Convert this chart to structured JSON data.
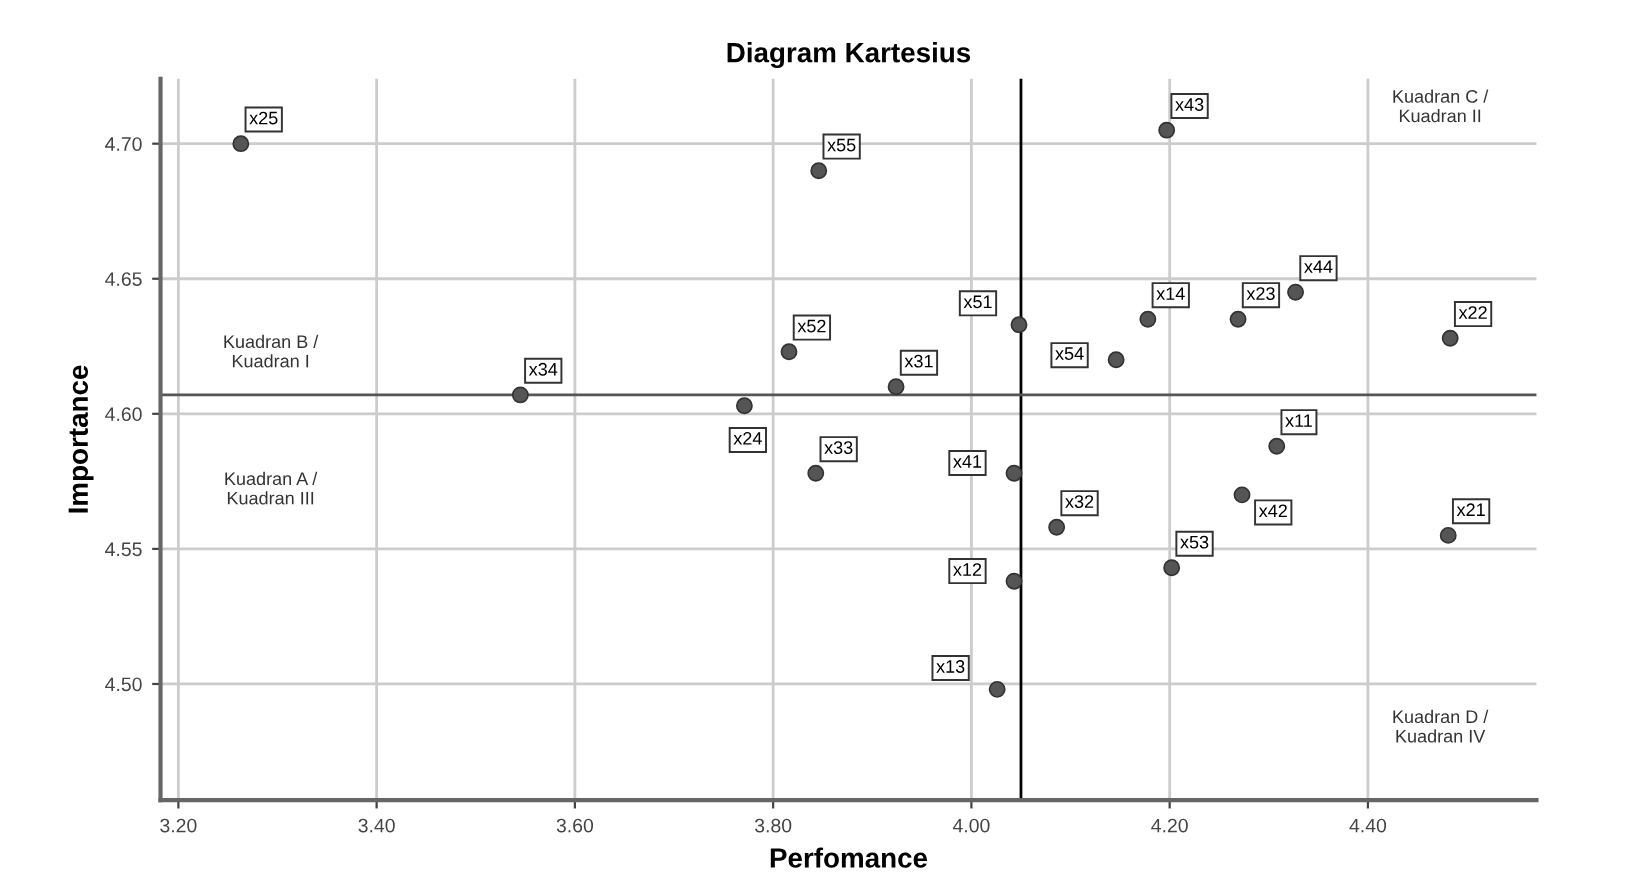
{
  "chart_data": {
    "type": "scatter",
    "title": "Diagram Kartesius",
    "xlabel": "Perfomance",
    "ylabel": "Importance",
    "x": [
      3.263,
      3.846,
      3.816,
      3.545,
      3.771,
      4.197,
      4.048,
      3.924,
      4.146,
      4.178,
      4.269,
      4.327,
      4.483,
      3.843,
      4.043,
      4.086,
      4.308,
      4.273,
      4.481,
      4.202,
      4.043,
      4.026
    ],
    "values": [
      4.7,
      4.69,
      4.623,
      4.607,
      4.603,
      4.705,
      4.633,
      4.61,
      4.62,
      4.635,
      4.635,
      4.645,
      4.628,
      4.578,
      4.578,
      4.558,
      4.588,
      4.57,
      4.555,
      4.543,
      4.538,
      4.498
    ],
    "value_labels": [
      "x25",
      "x55",
      "x52",
      "x34",
      "x24",
      "x43",
      "x51",
      "x31",
      "x54",
      "x14",
      "x23",
      "x44",
      "x22",
      "x33",
      "x41",
      "x32",
      "x11",
      "x42",
      "x21",
      "x53",
      "x12",
      "x13"
    ],
    "color": "#555555",
    "marker": "circle",
    "xlim": [
      3.182,
      4.57
    ],
    "ylim": [
      4.457,
      4.724
    ],
    "xticks": [
      {
        "value": 3.2,
        "label": "3.20"
      },
      {
        "value": 3.4,
        "label": "3.40"
      },
      {
        "value": 3.6,
        "label": "3.60"
      },
      {
        "value": 3.8,
        "label": "3.80"
      },
      {
        "value": 4.0,
        "label": "4.00"
      },
      {
        "value": 4.2,
        "label": "4.20"
      },
      {
        "value": 4.4,
        "label": "4.40"
      }
    ],
    "yticks": [
      {
        "value": 4.5,
        "label": "4.50"
      },
      {
        "value": 4.55,
        "label": "4.55"
      },
      {
        "value": 4.6,
        "label": "4.60"
      },
      {
        "value": 4.65,
        "label": "4.65"
      },
      {
        "value": 4.7,
        "label": "4.70"
      }
    ],
    "grid": true,
    "ref_lines": [
      {
        "axis": "x",
        "value": 4.05,
        "color": "#000000"
      },
      {
        "axis": "y",
        "value": 4.607,
        "color": "#555555"
      }
    ],
    "annotations": [
      "Kuadran B /\nKuadran I",
      "Kuadran C /\nKuadran II",
      "Kuadran A /\nKuadran III",
      "Kuadran D /\nKuadran IV"
    ]
  }
}
